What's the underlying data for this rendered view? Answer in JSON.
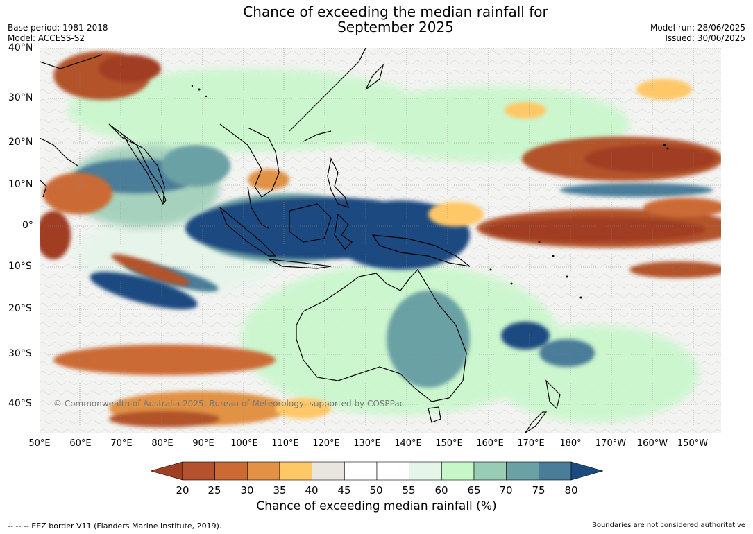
{
  "header": {
    "title_line1": "Chance of exceeding the median rainfall for",
    "title_line2": "September 2025",
    "base_period": "Base period: 1981-2018",
    "model": "Model: ACCESS-S2",
    "model_run": "Model run: 28/06/2025",
    "issued": "Issued: 30/06/2025"
  },
  "map": {
    "lat_labels": [
      "40°N",
      "30°N",
      "20°N",
      "10°N",
      "0°",
      "10°S",
      "20°S",
      "30°S",
      "40°S"
    ],
    "lon_labels": [
      "50°E",
      "60°E",
      "70°E",
      "80°E",
      "90°E",
      "100°E",
      "110°E",
      "120°E",
      "130°E",
      "140°E",
      "150°E",
      "160°E",
      "170°E",
      "180°",
      "170°W",
      "160°W",
      "150°W"
    ],
    "copyright": "© Commonwealth of Australia 2025, Bureau of Meteorology, supported by COSPPac"
  },
  "colorbar": {
    "ticks": [
      "20",
      "25",
      "30",
      "35",
      "40",
      "45",
      "50",
      "55",
      "60",
      "65",
      "70",
      "75",
      "80"
    ],
    "colors": [
      "#a03e22",
      "#b3522c",
      "#cc6a34",
      "#e19244",
      "#fec867",
      "#e9e6e0",
      "#ffffff",
      "#ffffff",
      "#e6f5e9",
      "#c6f7c9",
      "#99ccb5",
      "#6ba1a4",
      "#497d99",
      "#1b4a80"
    ],
    "title": "Chance of exceeding median rainfall (%)"
  },
  "footer": {
    "eez": "--  --  -- EEZ border V11 (Flanders Marine Institute, 2019).",
    "disclaimer": "Boundaries are not considered authoritative"
  }
}
